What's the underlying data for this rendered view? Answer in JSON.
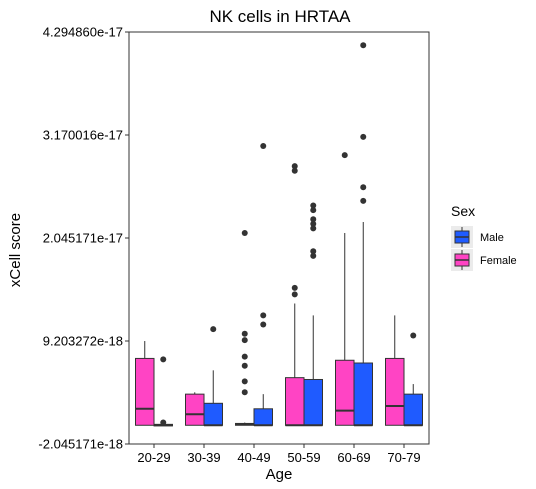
{
  "chart_data": {
    "type": "box",
    "title": "NK cells in HRTAA",
    "xlabel": "Age",
    "ylabel": "xCell score",
    "categories": [
      "20-29",
      "30-39",
      "40-49",
      "50-59",
      "60-69",
      "70-79"
    ],
    "y_ticks": [
      {
        "value": -2.045171e-18,
        "label": "-2.045171e-18"
      },
      {
        "value": 9.203272e-18,
        "label": "9.203272e-18"
      },
      {
        "value": 2.045171e-17,
        "label": "2.045171e-17"
      },
      {
        "value": 3.170016e-17,
        "label": "3.170016e-17"
      },
      {
        "value": 4.29486e-17,
        "label": "4.294860e-17"
      }
    ],
    "ylim": [
      -2.045171e-18,
      4.29486e-17
    ],
    "legend": {
      "title": "Sex",
      "position": "right",
      "entries": [
        {
          "name": "Male",
          "color": "#1f5bff"
        },
        {
          "name": "Female",
          "color": "#ff44c4"
        }
      ]
    },
    "grid": false,
    "series": [
      {
        "name": "Female",
        "color": "#ff44c4",
        "boxes": [
          {
            "min": 0.0,
            "q1": 0.0,
            "median": 1.8e-18,
            "q3": 7.3e-18,
            "max": 9.2e-18,
            "outliers": []
          },
          {
            "min": 0.0,
            "q1": 0.0,
            "median": 1.2e-18,
            "q3": 3.4e-18,
            "max": 3.6e-18,
            "outliers": []
          },
          {
            "min": 0.0,
            "q1": 0.0,
            "median": 1e-19,
            "q3": 2e-19,
            "max": 3e-19,
            "outliers": [
              2.1e-17,
              1e-17,
              9.3e-18,
              7.5e-18,
              6.5e-18,
              4.8e-18,
              3.6e-18
            ]
          },
          {
            "min": 0.0,
            "q1": 0.0,
            "median": 0.0,
            "q3": 5.2e-18,
            "max": 1.33e-17,
            "outliers": [
              2.83e-17,
              2.78e-17,
              1.5e-17,
              1.43e-17
            ]
          },
          {
            "min": 0.0,
            "q1": 0.0,
            "median": 1.6e-18,
            "q3": 7.1e-18,
            "max": 2.1e-17,
            "outliers": [
              2.95e-17
            ]
          },
          {
            "min": 0.0,
            "q1": 0.0,
            "median": 2.1e-18,
            "q3": 7.3e-18,
            "max": 1.2e-17,
            "outliers": []
          }
        ]
      },
      {
        "name": "Male",
        "color": "#1f5bff",
        "boxes": [
          {
            "min": 0.0,
            "q1": 0.0,
            "median": 0.0,
            "q3": 1e-19,
            "max": 2e-19,
            "outliers": [
              7.2e-18,
              3e-19
            ]
          },
          {
            "min": 0.0,
            "q1": 0.0,
            "median": 0.0,
            "q3": 2.4e-18,
            "max": 6e-18,
            "outliers": [
              1.05e-17
            ]
          },
          {
            "min": 0.0,
            "q1": 0.0,
            "median": 0.0,
            "q3": 1.8e-18,
            "max": 3.4e-18,
            "outliers": [
              3.05e-17,
              1.2e-17,
              1.1e-17
            ]
          },
          {
            "min": 0.0,
            "q1": 0.0,
            "median": 0.0,
            "q3": 5e-18,
            "max": 1.2e-17,
            "outliers": [
              2.4e-17,
              2.35e-17,
              2.25e-17,
              2.2e-17,
              2.15e-17,
              1.9e-17,
              1.85e-17
            ]
          },
          {
            "min": 0.0,
            "q1": 0.0,
            "median": 0.0,
            "q3": 6.8e-18,
            "max": 2.22e-17,
            "outliers": [
              4.15e-17,
              3.15e-17,
              2.6e-17,
              2.45e-17
            ]
          },
          {
            "min": 0.0,
            "q1": 0.0,
            "median": 0.0,
            "q3": 3.4e-18,
            "max": 4.5e-18,
            "outliers": [
              9.8e-18
            ]
          }
        ]
      }
    ]
  }
}
